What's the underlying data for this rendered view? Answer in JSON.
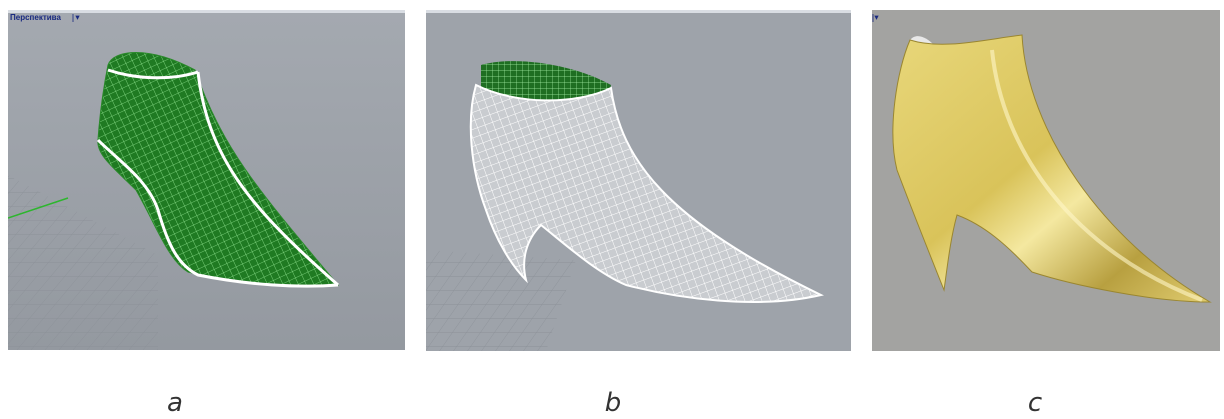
{
  "panels": [
    {
      "viewport_label": "Перспектива",
      "caption": "a"
    },
    {
      "caption": "b"
    },
    {
      "caption": "c"
    }
  ]
}
